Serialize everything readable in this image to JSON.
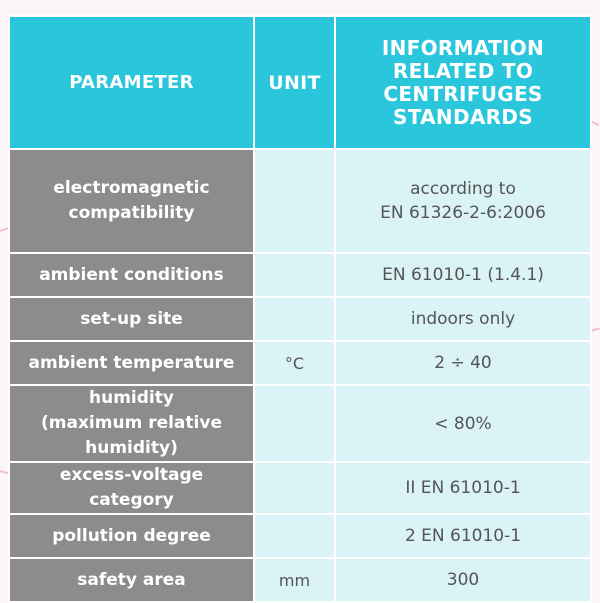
{
  "header": {
    "parameter": "PARAMETER",
    "unit": "UNIT",
    "info": "INFORMATION\nRELATED TO\nCENTRIFUGES\nSTANDARDS"
  },
  "rows": [
    {
      "parameter": "electromagnetic compatibility",
      "unit": "",
      "info": "according to\nEN 61326-2-6:2006"
    },
    {
      "parameter": "ambient conditions",
      "unit": "",
      "info": "EN 61010-1 (1.4.1)"
    },
    {
      "parameter": "set-up site",
      "unit": "",
      "info": "indoors only"
    },
    {
      "parameter": "ambient temperature",
      "unit": "°C",
      "info": "2 ÷ 40"
    },
    {
      "parameter": "humidity\n(maximum relative humidity)",
      "unit": "",
      "info": "< 80%"
    },
    {
      "parameter": "excess-voltage category",
      "unit": "",
      "info": "II  EN 61010-1"
    },
    {
      "parameter": "pollution degree",
      "unit": "",
      "info": "2  EN 61010-1"
    },
    {
      "parameter": "safety area",
      "unit": "mm",
      "info": "300"
    }
  ],
  "colors": {
    "header_bg": "#29c6dc",
    "parameter_bg": "#8d8b8e",
    "value_bg": "#d9f3f6",
    "background_accent": "#f08ab8"
  }
}
